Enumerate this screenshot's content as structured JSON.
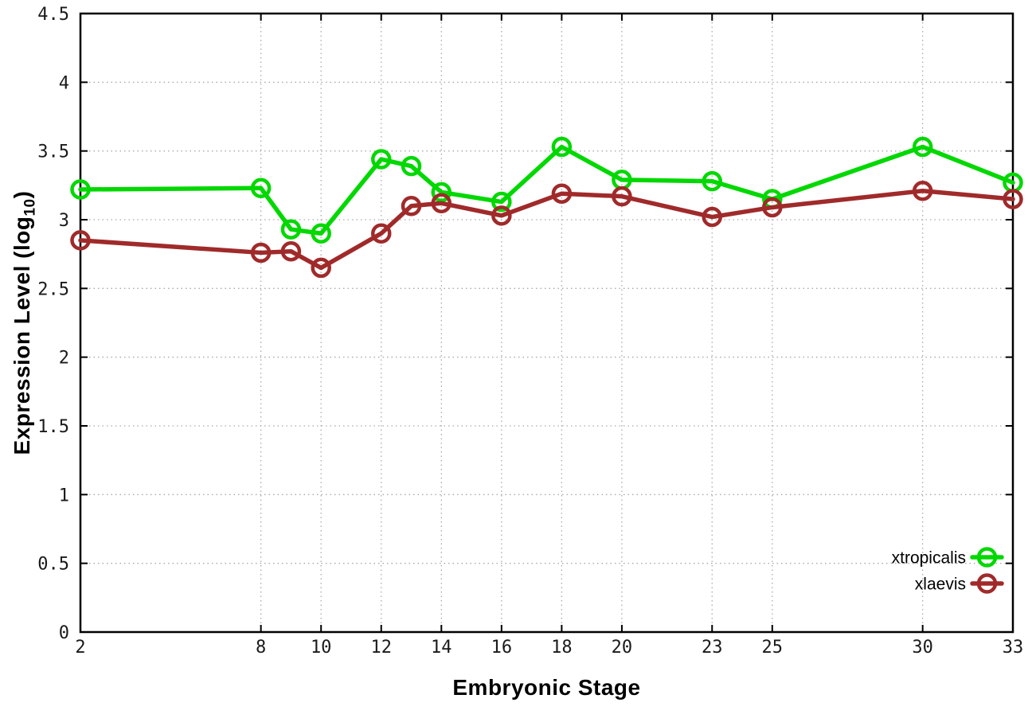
{
  "chart_data": {
    "type": "line",
    "title": "",
    "xlabel": "Embryonic Stage",
    "ylabel": {
      "prefix": "Expression Level (log",
      "sub": "10",
      "suffix": ")"
    },
    "xlim": [
      2,
      33
    ],
    "ylim": [
      0,
      4.5
    ],
    "x_ticks": [
      2,
      8,
      10,
      12,
      14,
      16,
      18,
      20,
      23,
      25,
      30,
      33
    ],
    "x_tick_labels": [
      "2",
      "8",
      "10",
      "12",
      "14",
      "16",
      "18",
      "20",
      "23",
      "25",
      "30",
      "33"
    ],
    "y_ticks": [
      0,
      0.5,
      1,
      1.5,
      2,
      2.5,
      3,
      3.5,
      4,
      4.5
    ],
    "y_tick_labels": [
      "0",
      "0.5",
      "1",
      "1.5",
      "2",
      "2.5",
      "3",
      "3.5",
      "4",
      "4.5"
    ],
    "grid": true,
    "legend": {
      "position": "bottom-right",
      "entries": [
        "xtropicalis",
        "xlaevis"
      ]
    },
    "x": [
      2,
      8,
      9,
      10,
      12,
      13,
      14,
      16,
      18,
      20,
      23,
      25,
      30,
      33
    ],
    "series": [
      {
        "name": "xtropicalis",
        "color": "#00d800",
        "marker": "open-circle",
        "values": [
          3.22,
          3.23,
          2.93,
          2.9,
          3.44,
          3.39,
          3.2,
          3.13,
          3.53,
          3.29,
          3.28,
          3.15,
          3.53,
          3.27
        ]
      },
      {
        "name": "xlaevis",
        "color": "#a02a2a",
        "marker": "open-circle",
        "values": [
          2.85,
          2.76,
          2.77,
          2.65,
          2.9,
          3.1,
          3.12,
          3.03,
          3.19,
          3.17,
          3.02,
          3.09,
          3.21,
          3.15
        ]
      }
    ],
    "colors": {
      "background": "#ffffff",
      "axis": "#000000",
      "grid": "#aaaaaa"
    }
  }
}
